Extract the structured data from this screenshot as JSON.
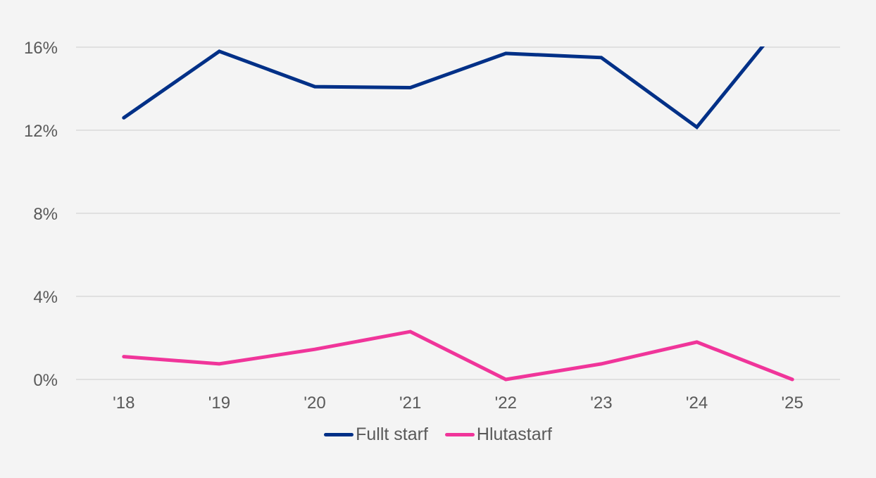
{
  "chart_data": {
    "type": "line",
    "title": "",
    "xlabel": "",
    "ylabel": "",
    "categories": [
      "'18",
      "'19",
      "'20",
      "'21",
      "'22",
      "'23",
      "'24",
      "'25"
    ],
    "series": [
      {
        "name": "Fullt starf",
        "color": "#003087",
        "values": [
          12.6,
          15.8,
          14.1,
          14.05,
          15.7,
          15.5,
          12.15,
          17.8
        ]
      },
      {
        "name": "Hlutastarf",
        "color": "#f0359a",
        "values": [
          1.1,
          0.75,
          1.45,
          2.3,
          0.0,
          0.75,
          1.8,
          0.0
        ]
      }
    ],
    "yticks": [
      "0%",
      "4%",
      "8%",
      "12%",
      "16%"
    ],
    "ytick_values": [
      0,
      4,
      8,
      12,
      16
    ],
    "ylim": [
      0,
      16
    ],
    "grid": true,
    "legend_position": "bottom",
    "note": "Fullt starf '25 value exceeds axis max and is clipped at 16%"
  },
  "legend": {
    "items": [
      {
        "label": "Fullt starf",
        "color": "#003087"
      },
      {
        "label": "Hlutastarf",
        "color": "#f0359a"
      }
    ]
  },
  "colors": {
    "background": "#f4f4f4",
    "grid": "#d9d9d9",
    "text": "#595959"
  }
}
